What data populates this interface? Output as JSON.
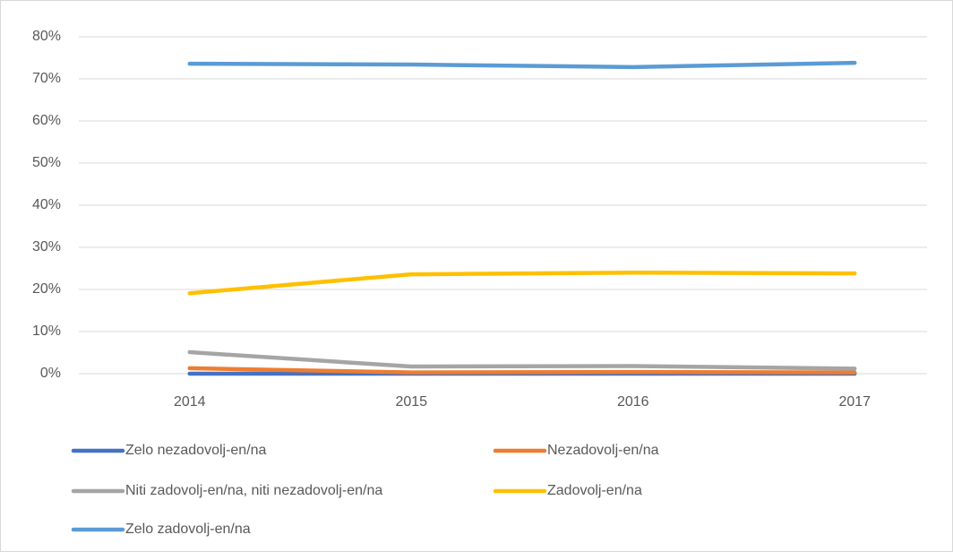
{
  "chart_data": {
    "type": "line",
    "categories": [
      "2014",
      "2015",
      "2016",
      "2017"
    ],
    "series": [
      {
        "name": "Zelo nezadovolj-en/na",
        "color": "#4472c4",
        "values": [
          0,
          0,
          0,
          0
        ]
      },
      {
        "name": "Nezadovolj-en/na",
        "color": "#ed7d31",
        "values": [
          1.3,
          0.3,
          0.4,
          0.3
        ]
      },
      {
        "name": "Niti zadovolj-en/na, niti nezadovolj-en/na",
        "color": "#a5a5a5",
        "values": [
          5.1,
          1.7,
          1.8,
          1.2
        ]
      },
      {
        "name": "Zadovolj-en/na",
        "color": "#ffc000",
        "values": [
          19.1,
          23.6,
          24.0,
          23.8
        ]
      },
      {
        "name": "Zelo zadovolj-en/na",
        "color": "#5b9bd5",
        "values": [
          73.6,
          73.4,
          72.8,
          73.8
        ]
      }
    ],
    "ylim": [
      0,
      80
    ],
    "yticks": [
      {
        "value": 0,
        "label": "0%"
      },
      {
        "value": 10,
        "label": "10%"
      },
      {
        "value": 20,
        "label": "20%"
      },
      {
        "value": 30,
        "label": "30%"
      },
      {
        "value": 40,
        "label": "40%"
      },
      {
        "value": 50,
        "label": "50%"
      },
      {
        "value": 60,
        "label": "60%"
      },
      {
        "value": 70,
        "label": "70%"
      },
      {
        "value": 80,
        "label": "80%"
      }
    ],
    "grid": true,
    "legend": "bottom"
  }
}
